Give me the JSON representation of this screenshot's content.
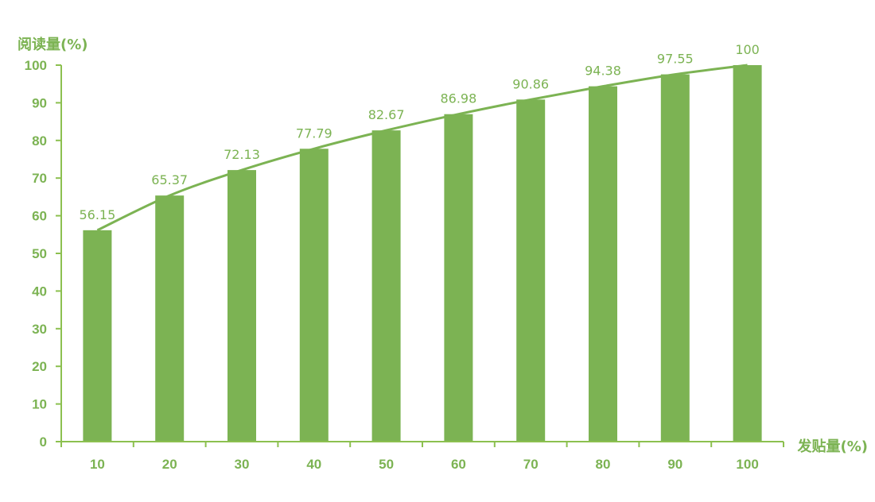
{
  "chart_data": {
    "type": "bar",
    "title": "",
    "xlabel": "发贴量(%)",
    "ylabel": "阅读量(%)",
    "categories": [
      "10",
      "20",
      "30",
      "40",
      "50",
      "60",
      "70",
      "80",
      "90",
      "100"
    ],
    "values": [
      56.15,
      65.37,
      72.13,
      77.79,
      82.67,
      86.98,
      90.86,
      94.38,
      97.55,
      100
    ],
    "data_labels": [
      "56.15",
      "65.37",
      "72.13",
      "77.79",
      "82.67",
      "86.98",
      "90.86",
      "94.38",
      "97.55",
      "100"
    ],
    "overlay_line": true,
    "ylim": [
      0,
      100
    ],
    "yticks": [
      0,
      10,
      20,
      30,
      40,
      50,
      60,
      70,
      80,
      90,
      100
    ],
    "grid": false,
    "legend": "none",
    "colors": {
      "bar": "#7cb353",
      "line": "#7cb353",
      "axis": "#8cc04f",
      "text": "#7cb353"
    }
  }
}
